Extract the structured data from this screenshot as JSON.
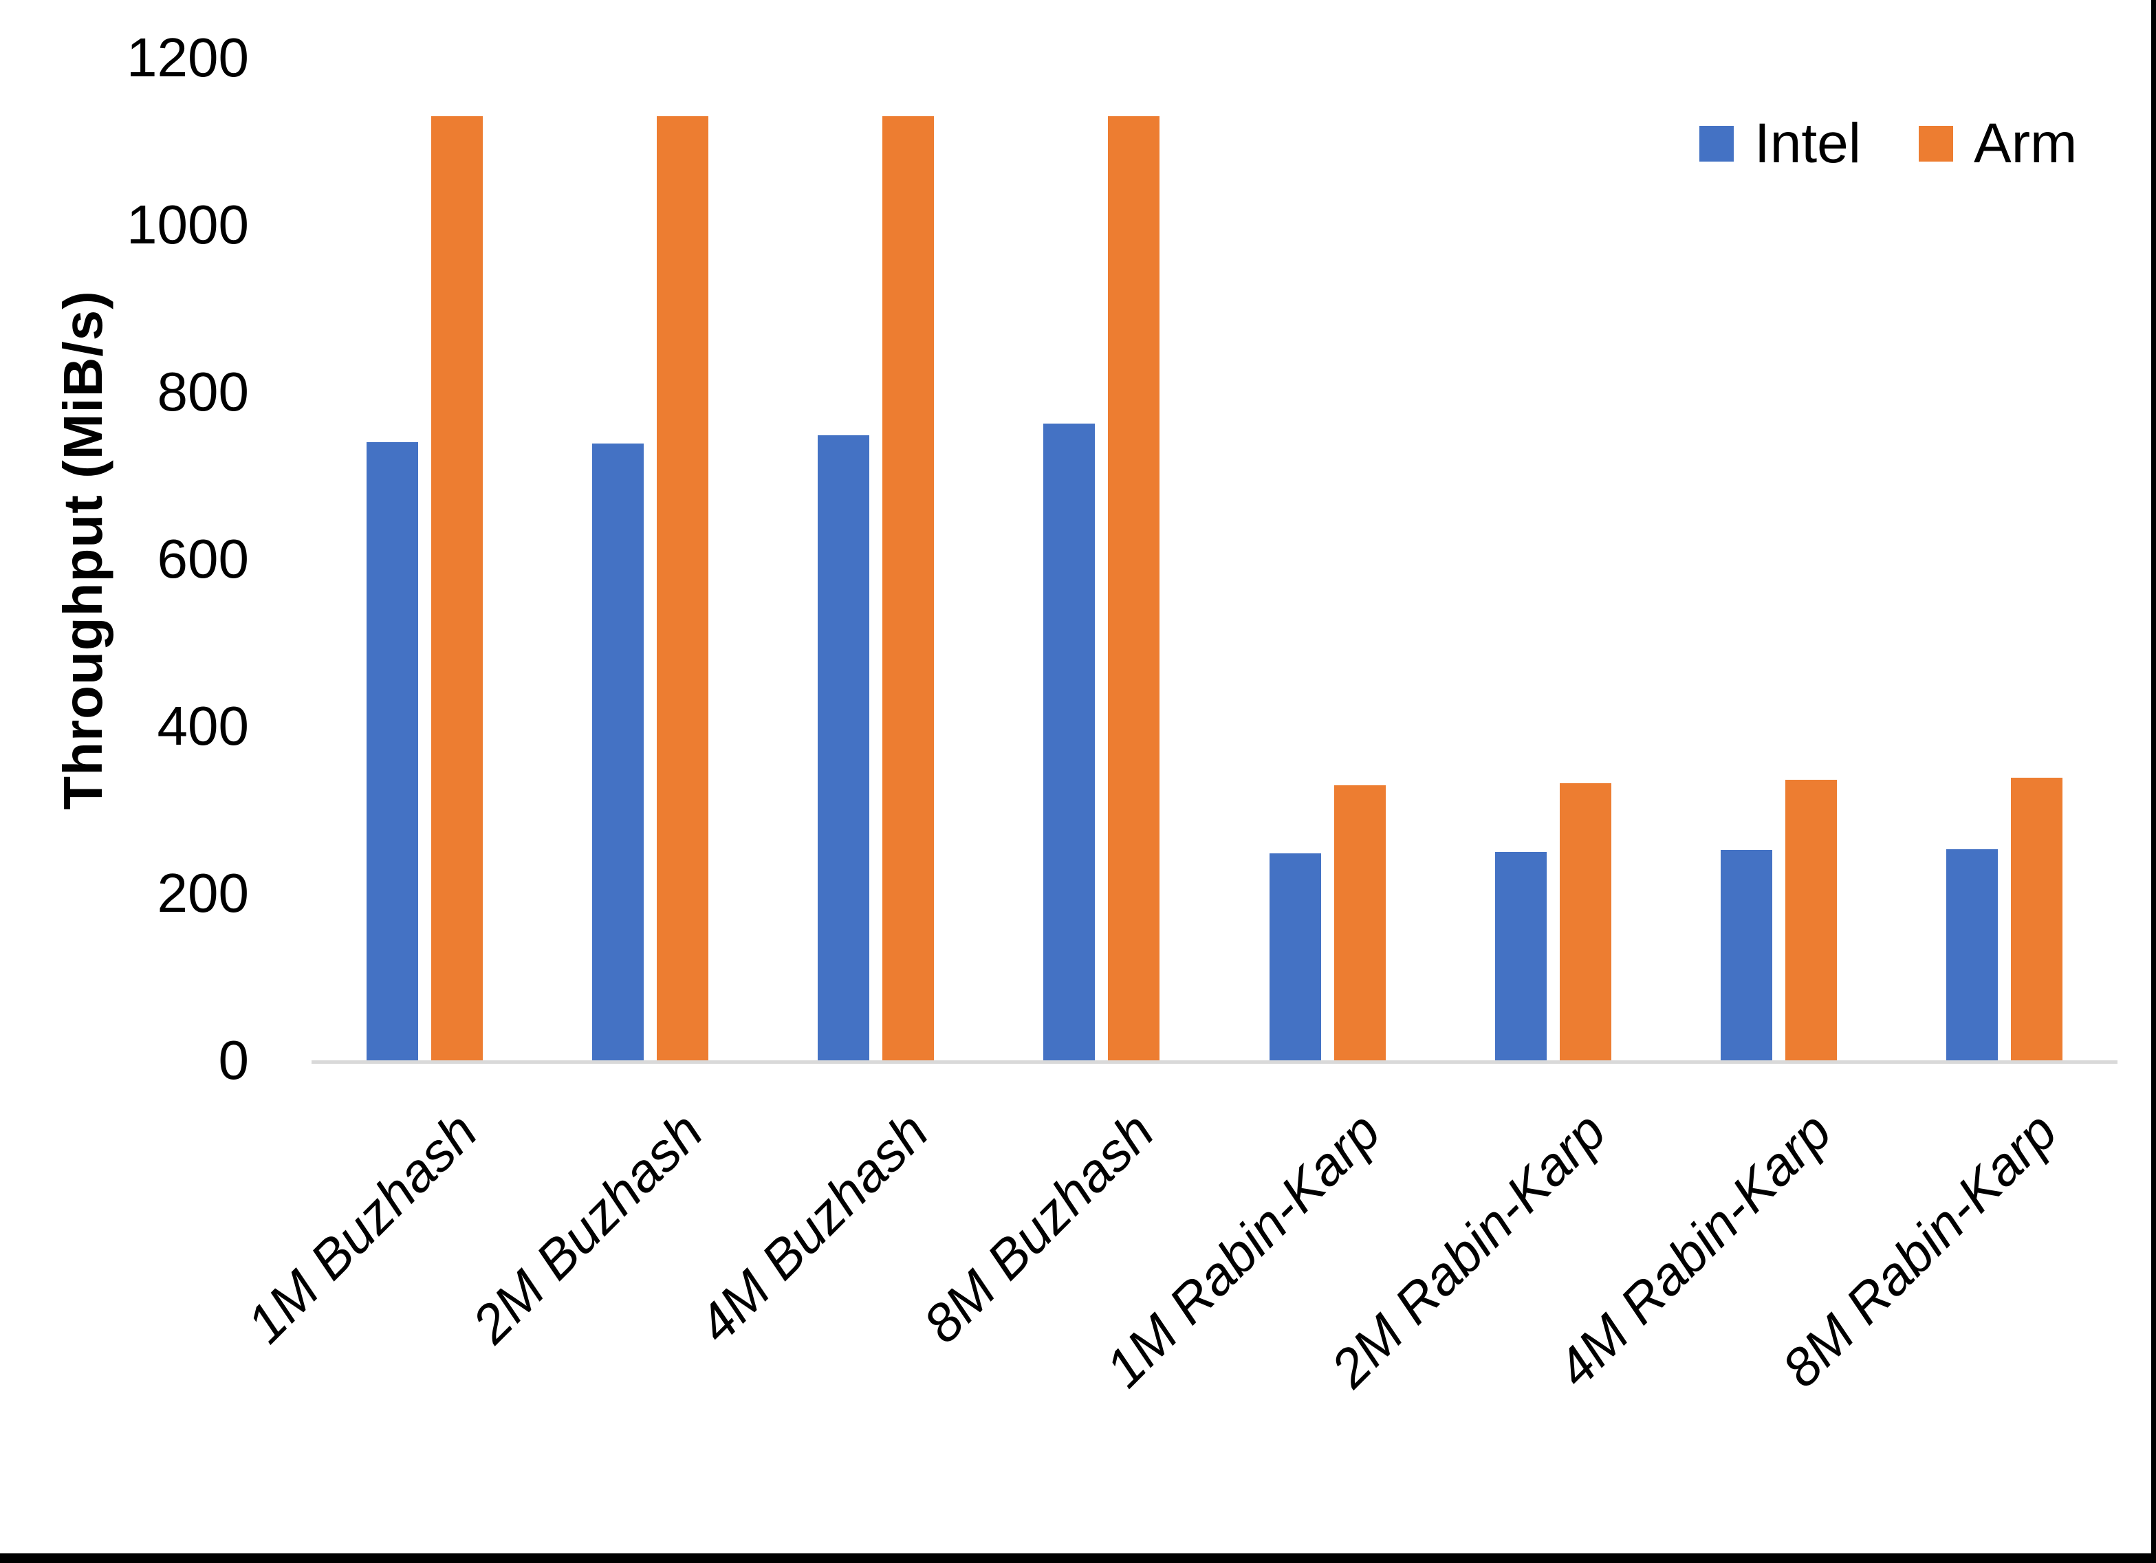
{
  "chart_data": {
    "type": "bar",
    "title": "",
    "xlabel": "",
    "ylabel": "Throughput (MiB/s)",
    "categories": [
      "1M Buzhash",
      "2M Buzhash",
      "4M Buzhash",
      "8M Buzhash",
      "1M Rabin-Karp",
      "2M Rabin-Karp",
      "4M Rabin-Karp",
      "8M Rabin-Karp"
    ],
    "series": [
      {
        "name": "Intel",
        "color": "#4472C4",
        "values": [
          740,
          738,
          748,
          762,
          248,
          249,
          252,
          253
        ]
      },
      {
        "name": "Arm",
        "color": "#ED7D31",
        "values": [
          1130,
          1130,
          1130,
          1130,
          329,
          332,
          336,
          338
        ]
      }
    ],
    "ylim": [
      0,
      1200
    ],
    "yticks": [
      0,
      200,
      400,
      600,
      800,
      1000,
      1200
    ],
    "grid": false,
    "legend_position": "top-right",
    "baseline_color": "#D9D9D9"
  },
  "frame": {
    "bottom_edge_color": "#000000",
    "right_edge_color": "#000000"
  }
}
